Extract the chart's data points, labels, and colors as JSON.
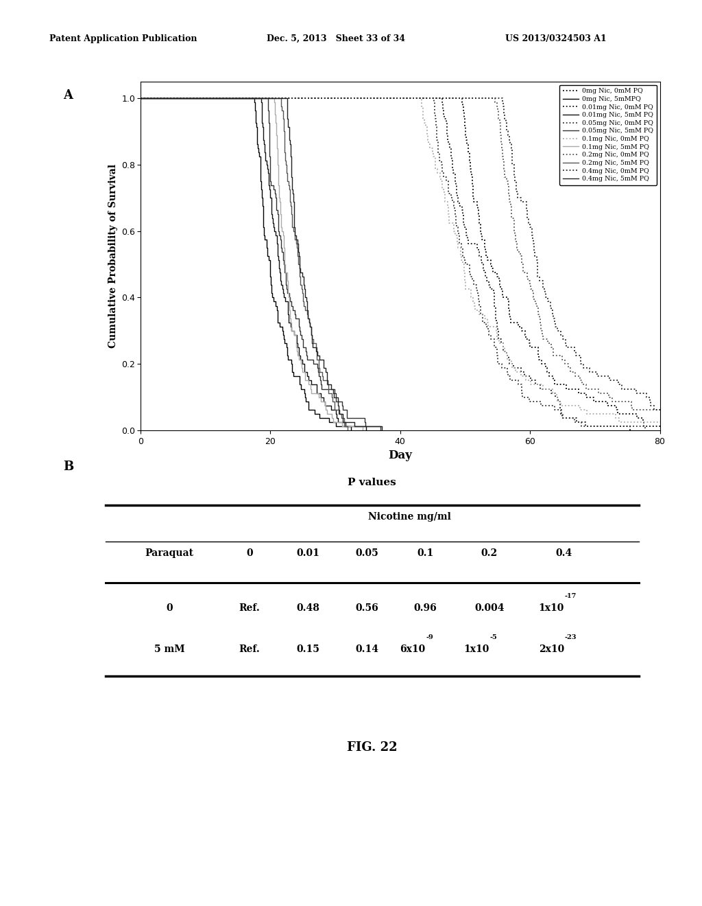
{
  "header_left": "Patent Application Publication",
  "header_center": "Dec. 5, 2013   Sheet 33 of 34",
  "header_right": "US 2013/0324503 A1",
  "label_A": "A",
  "label_B": "B",
  "xlabel": "Day",
  "ylabel": "Cumulative Probability of Survival",
  "xlim": [
    0,
    80
  ],
  "ylim": [
    0.0,
    1.05
  ],
  "xticks": [
    0,
    20,
    40,
    60,
    80
  ],
  "yticks": [
    0.0,
    0.2,
    0.4,
    0.6,
    0.8,
    1.0
  ],
  "legend_entries": [
    "0mg Nic, 0mM PQ",
    "0mg Nic, 5mMPQ",
    "0.01mg Nic, 0mM PQ",
    "0.01mg Nic, 5mM PQ",
    "0.05mg Nic, 0mM PQ",
    "0.05mg Nic, 5mM PQ",
    "0.1mg Nic, 0mM PQ",
    "0.1mg Nic, 5mM PQ",
    "0.2mg Nic, 0mM PQ",
    "0.2mg Nic, 5mM PQ",
    "0.4mg Nic, 0mM PQ",
    "0.4mg Nic, 5mM PQ"
  ],
  "table_title": "P values",
  "table_col_header": "Nicotine mg/ml",
  "table_row_header": "Paraquat",
  "table_cols": [
    "0",
    "0.01",
    "0.05",
    "0.1",
    "0.2",
    "0.4"
  ],
  "table_rows": [
    "0",
    "5 mM"
  ],
  "table_data_plain": [
    [
      "Ref.",
      "0.48",
      "0.56",
      "0.96",
      "0.004",
      "1x10"
    ],
    [
      "Ref.",
      "0.15",
      "0.14",
      "6x10",
      "1x10",
      "2x10"
    ]
  ],
  "table_data_sup": [
    [
      "",
      "",
      "",
      "",
      "",
      "-17"
    ],
    [
      "",
      "",
      "",
      "-9",
      "-5",
      "-23"
    ]
  ],
  "table_data_prefix": [
    [
      "",
      "",
      "",
      "",
      "",
      "1x10"
    ],
    [
      "",
      "",
      "",
      "6x10",
      "1x10",
      "2x10"
    ]
  ],
  "fig_label": "FIG. 22",
  "background_color": "#ffffff",
  "curve_params": [
    {
      "median": 55,
      "scale": 8,
      "is_0mM": true,
      "pair": 0
    },
    {
      "median": 20,
      "scale": 3.5,
      "is_0mM": false,
      "pair": 0
    },
    {
      "median": 52,
      "scale": 8,
      "is_0mM": true,
      "pair": 1
    },
    {
      "median": 21,
      "scale": 3.5,
      "is_0mM": false,
      "pair": 1
    },
    {
      "median": 50,
      "scale": 7,
      "is_0mM": true,
      "pair": 2
    },
    {
      "median": 22,
      "scale": 3.5,
      "is_0mM": false,
      "pair": 2
    },
    {
      "median": 48,
      "scale": 7,
      "is_0mM": true,
      "pair": 3
    },
    {
      "median": 23,
      "scale": 3.5,
      "is_0mM": false,
      "pair": 3
    },
    {
      "median": 60,
      "scale": 8,
      "is_0mM": true,
      "pair": 4
    },
    {
      "median": 24,
      "scale": 3.5,
      "is_0mM": false,
      "pair": 4
    },
    {
      "median": 62,
      "scale": 9,
      "is_0mM": true,
      "pair": 5
    },
    {
      "median": 25,
      "scale": 3.5,
      "is_0mM": false,
      "pair": 5
    }
  ],
  "pair_colors": [
    "#000000",
    "#111111",
    "#333333",
    "#aaaaaa",
    "#555555",
    "#222222"
  ]
}
